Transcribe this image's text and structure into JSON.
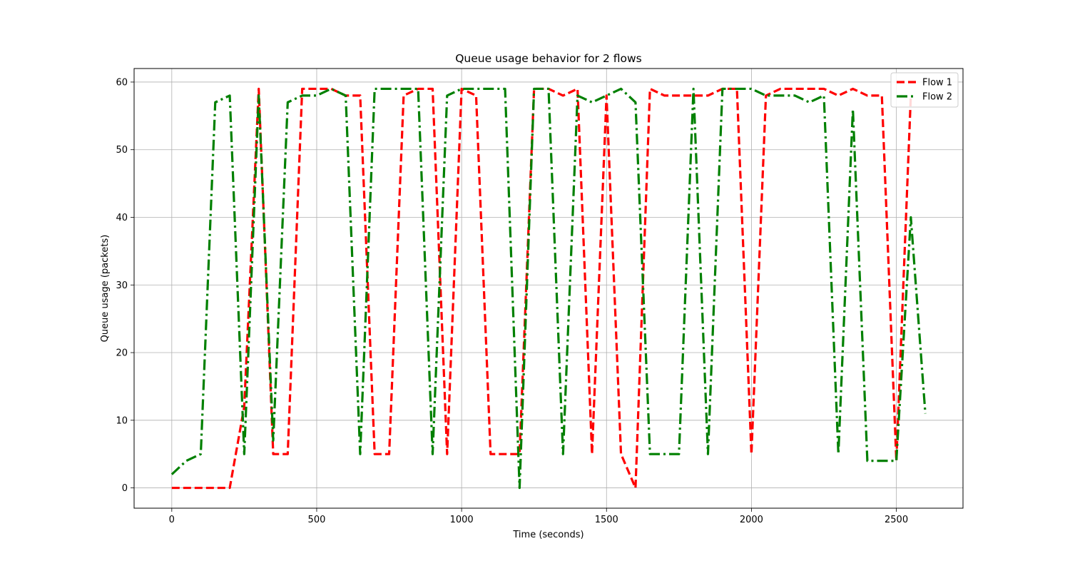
{
  "chart_data": {
    "type": "line",
    "title": "Queue usage behavior for 2 flows",
    "xlabel": "Time (seconds)",
    "ylabel": "Queue usage (packets)",
    "xlim": [
      -130,
      2730
    ],
    "ylim": [
      -3,
      62
    ],
    "xticks": [
      0,
      500,
      1000,
      1500,
      2000,
      2500
    ],
    "yticks": [
      0,
      10,
      20,
      30,
      40,
      50,
      60
    ],
    "grid": true,
    "legend_position": "top-right",
    "series": [
      {
        "name": "Flow 1",
        "color": "#ff0000",
        "style": "dashed",
        "x": [
          0,
          50,
          100,
          150,
          200,
          250,
          300,
          350,
          400,
          450,
          500,
          550,
          600,
          650,
          700,
          750,
          800,
          850,
          900,
          950,
          1000,
          1050,
          1100,
          1150,
          1200,
          1250,
          1300,
          1350,
          1400,
          1450,
          1500,
          1550,
          1600,
          1650,
          1700,
          1750,
          1800,
          1850,
          1900,
          1950,
          2000,
          2050,
          2100,
          2150,
          2200,
          2250,
          2300,
          2350,
          2400,
          2450,
          2500,
          2550
        ],
        "y": [
          0,
          0,
          0,
          0,
          0,
          12,
          59,
          5,
          5,
          59,
          59,
          59,
          58,
          58,
          5,
          5,
          58,
          59,
          59,
          5,
          59,
          58,
          5,
          5,
          5,
          59,
          59,
          58,
          59,
          5,
          58,
          5,
          0,
          59,
          58,
          58,
          58,
          58,
          59,
          59,
          5,
          58,
          59,
          59,
          59,
          59,
          58,
          59,
          58,
          58,
          4,
          58
        ]
      },
      {
        "name": "Flow 2",
        "color": "#008000",
        "style": "dashdot",
        "x": [
          0,
          50,
          100,
          150,
          200,
          250,
          300,
          350,
          400,
          450,
          500,
          550,
          600,
          650,
          700,
          750,
          800,
          850,
          900,
          950,
          1000,
          1050,
          1100,
          1150,
          1200,
          1250,
          1300,
          1350,
          1400,
          1450,
          1500,
          1550,
          1600,
          1650,
          1700,
          1750,
          1800,
          1850,
          1900,
          1950,
          2000,
          2050,
          2100,
          2150,
          2200,
          2250,
          2300,
          2350,
          2400,
          2450,
          2500,
          2550,
          2600
        ],
        "y": [
          2,
          4,
          5,
          57,
          58,
          5,
          58,
          7,
          57,
          58,
          58,
          59,
          58,
          5,
          59,
          59,
          59,
          59,
          5,
          58,
          59,
          59,
          59,
          59,
          0,
          59,
          59,
          5,
          58,
          57,
          58,
          59,
          57,
          5,
          5,
          5,
          59,
          5,
          59,
          59,
          59,
          58,
          58,
          58,
          57,
          58,
          5,
          56,
          4,
          4,
          4,
          40,
          11
        ]
      }
    ]
  }
}
